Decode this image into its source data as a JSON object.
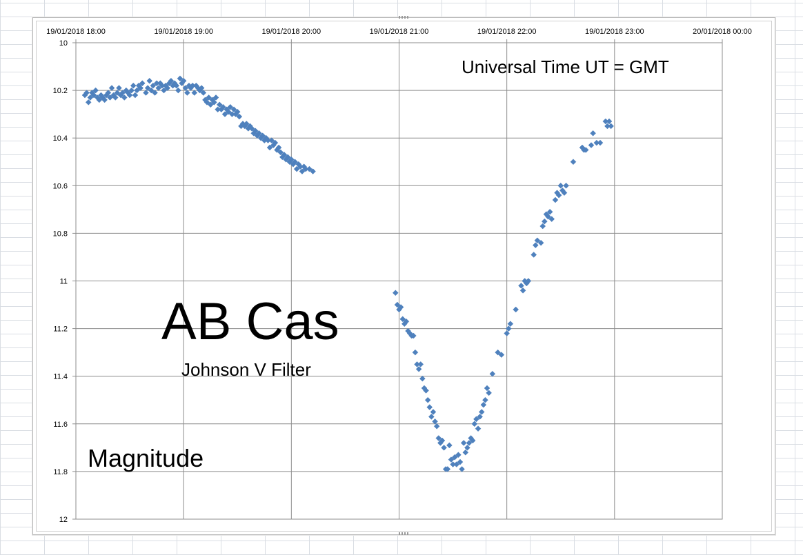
{
  "chart_data": {
    "type": "scatter",
    "title": "",
    "xlabel": "",
    "ylabel": "",
    "x_axis_position": "top",
    "y_axis_inverted": true,
    "xlim": [
      "19/01/2018 18:00",
      "20/01/2018 00:00"
    ],
    "ylim": [
      10,
      12
    ],
    "x_tick_labels": [
      "19/01/2018 18:00",
      "19/01/2018 19:00",
      "19/01/2018 20:00",
      "19/01/2018 21:00",
      "19/01/2018 22:00",
      "19/01/2018 23:00",
      "20/01/2018 00:00"
    ],
    "y_tick_labels": [
      "10",
      "10.2",
      "10.4",
      "10.6",
      "10.8",
      "11",
      "11.2",
      "11.4",
      "11.6",
      "11.8",
      "12"
    ],
    "grid": true,
    "marker": "diamond",
    "marker_color": "#4f81bd",
    "annotations": [
      {
        "id": "star-name",
        "text": "AB Cas"
      },
      {
        "id": "filter-name",
        "text": "Johnson V Filter"
      },
      {
        "id": "time-note",
        "text": "Universal Time  UT = GMT"
      },
      {
        "id": "magnitude-label",
        "text": "Magnitude"
      }
    ],
    "series": [
      {
        "points": [
          [
            "19/01/2018 18:05",
            10.22
          ],
          [
            "19/01/2018 18:06",
            10.21
          ],
          [
            "19/01/2018 18:07",
            10.25
          ],
          [
            "19/01/2018 18:08",
            10.23
          ],
          [
            "19/01/2018 18:09",
            10.21
          ],
          [
            "19/01/2018 18:10",
            10.22
          ],
          [
            "19/01/2018 18:11",
            10.2
          ],
          [
            "19/01/2018 18:12",
            10.23
          ],
          [
            "19/01/2018 18:13",
            10.24
          ],
          [
            "19/01/2018 18:14",
            10.22
          ],
          [
            "19/01/2018 18:15",
            10.23
          ],
          [
            "19/01/2018 18:16",
            10.24
          ],
          [
            "19/01/2018 18:17",
            10.22
          ],
          [
            "19/01/2018 18:18",
            10.21
          ],
          [
            "19/01/2018 18:19",
            10.23
          ],
          [
            "19/01/2018 18:20",
            10.19
          ],
          [
            "19/01/2018 18:21",
            10.22
          ],
          [
            "19/01/2018 18:22",
            10.23
          ],
          [
            "19/01/2018 18:23",
            10.21
          ],
          [
            "19/01/2018 18:24",
            10.19
          ],
          [
            "19/01/2018 18:25",
            10.22
          ],
          [
            "19/01/2018 18:26",
            10.21
          ],
          [
            "19/01/2018 18:27",
            10.23
          ],
          [
            "19/01/2018 18:28",
            10.2
          ],
          [
            "19/01/2018 18:29",
            10.21
          ],
          [
            "19/01/2018 18:30",
            10.22
          ],
          [
            "19/01/2018 18:31",
            10.2
          ],
          [
            "19/01/2018 18:32",
            10.18
          ],
          [
            "19/01/2018 18:33",
            10.22
          ],
          [
            "19/01/2018 18:34",
            10.2
          ],
          [
            "19/01/2018 18:35",
            10.18
          ],
          [
            "19/01/2018 18:36",
            10.19
          ],
          [
            "19/01/2018 18:37",
            10.17
          ],
          [
            "19/01/2018 18:39",
            10.21
          ],
          [
            "19/01/2018 18:40",
            10.19
          ],
          [
            "19/01/2018 18:41",
            10.16
          ],
          [
            "19/01/2018 18:42",
            10.2
          ],
          [
            "19/01/2018 18:43",
            10.18
          ],
          [
            "19/01/2018 18:44",
            10.21
          ],
          [
            "19/01/2018 18:45",
            10.17
          ],
          [
            "19/01/2018 18:46",
            10.19
          ],
          [
            "19/01/2018 18:47",
            10.17
          ],
          [
            "19/01/2018 18:48",
            10.18
          ],
          [
            "19/01/2018 18:49",
            10.2
          ],
          [
            "19/01/2018 18:50",
            10.18
          ],
          [
            "19/01/2018 18:51",
            10.19
          ],
          [
            "19/01/2018 18:52",
            10.17
          ],
          [
            "19/01/2018 18:53",
            10.16
          ],
          [
            "19/01/2018 18:54",
            10.18
          ],
          [
            "19/01/2018 18:55",
            10.17
          ],
          [
            "19/01/2018 18:56",
            10.18
          ],
          [
            "19/01/2018 18:57",
            10.2
          ],
          [
            "19/01/2018 18:58",
            10.15
          ],
          [
            "19/01/2018 18:59",
            10.17
          ],
          [
            "19/01/2018 19:00",
            10.16
          ],
          [
            "19/01/2018 19:01",
            10.19
          ],
          [
            "19/01/2018 19:02",
            10.21
          ],
          [
            "19/01/2018 19:03",
            10.18
          ],
          [
            "19/01/2018 19:04",
            10.19
          ],
          [
            "19/01/2018 19:05",
            10.18
          ],
          [
            "19/01/2018 19:06",
            10.21
          ],
          [
            "19/01/2018 19:07",
            10.18
          ],
          [
            "19/01/2018 19:08",
            10.19
          ],
          [
            "19/01/2018 19:09",
            10.2
          ],
          [
            "19/01/2018 19:10",
            10.19
          ],
          [
            "19/01/2018 19:11",
            10.21
          ],
          [
            "19/01/2018 19:12",
            10.24
          ],
          [
            "19/01/2018 19:13",
            10.25
          ],
          [
            "19/01/2018 19:14",
            10.23
          ],
          [
            "19/01/2018 19:15",
            10.26
          ],
          [
            "19/01/2018 19:16",
            10.24
          ],
          [
            "19/01/2018 19:17",
            10.25
          ],
          [
            "19/01/2018 19:18",
            10.23
          ],
          [
            "19/01/2018 19:19",
            10.28
          ],
          [
            "19/01/2018 19:20",
            10.26
          ],
          [
            "19/01/2018 19:21",
            10.28
          ],
          [
            "19/01/2018 19:22",
            10.27
          ],
          [
            "19/01/2018 19:23",
            10.3
          ],
          [
            "19/01/2018 19:24",
            10.28
          ],
          [
            "19/01/2018 19:25",
            10.29
          ],
          [
            "19/01/2018 19:26",
            10.27
          ],
          [
            "19/01/2018 19:27",
            10.3
          ],
          [
            "19/01/2018 19:28",
            10.28
          ],
          [
            "19/01/2018 19:29",
            10.3
          ],
          [
            "19/01/2018 19:30",
            10.29
          ],
          [
            "19/01/2018 19:31",
            10.31
          ],
          [
            "19/01/2018 19:32",
            10.35
          ],
          [
            "19/01/2018 19:33",
            10.34
          ],
          [
            "19/01/2018 19:34",
            10.35
          ],
          [
            "19/01/2018 19:35",
            10.34
          ],
          [
            "19/01/2018 19:36",
            10.36
          ],
          [
            "19/01/2018 19:37",
            10.35
          ],
          [
            "19/01/2018 19:38",
            10.36
          ],
          [
            "19/01/2018 19:39",
            10.38
          ],
          [
            "19/01/2018 19:40",
            10.37
          ],
          [
            "19/01/2018 19:41",
            10.39
          ],
          [
            "19/01/2018 19:42",
            10.38
          ],
          [
            "19/01/2018 19:43",
            10.4
          ],
          [
            "19/01/2018 19:44",
            10.39
          ],
          [
            "19/01/2018 19:45",
            10.41
          ],
          [
            "19/01/2018 19:46",
            10.4
          ],
          [
            "19/01/2018 19:47",
            10.41
          ],
          [
            "19/01/2018 19:48",
            10.44
          ],
          [
            "19/01/2018 19:49",
            10.41
          ],
          [
            "19/01/2018 19:50",
            10.43
          ],
          [
            "19/01/2018 19:51",
            10.42
          ],
          [
            "19/01/2018 19:52",
            10.45
          ],
          [
            "19/01/2018 19:53",
            10.44
          ],
          [
            "19/01/2018 19:54",
            10.46
          ],
          [
            "19/01/2018 19:55",
            10.48
          ],
          [
            "19/01/2018 19:56",
            10.47
          ],
          [
            "19/01/2018 19:57",
            10.49
          ],
          [
            "19/01/2018 19:58",
            10.48
          ],
          [
            "19/01/2018 19:59",
            10.5
          ],
          [
            "19/01/2018 20:00",
            10.49
          ],
          [
            "19/01/2018 20:01",
            10.51
          ],
          [
            "19/01/2018 20:02",
            10.5
          ],
          [
            "19/01/2018 20:03",
            10.53
          ],
          [
            "19/01/2018 20:04",
            10.51
          ],
          [
            "19/01/2018 20:05",
            10.52
          ],
          [
            "19/01/2018 20:06",
            10.54
          ],
          [
            "19/01/2018 20:07",
            10.52
          ],
          [
            "19/01/2018 20:08",
            10.53
          ],
          [
            "19/01/2018 20:10",
            10.53
          ],
          [
            "19/01/2018 20:12",
            10.54
          ],
          [
            "19/01/2018 20:58",
            11.05
          ],
          [
            "19/01/2018 20:59",
            11.1
          ],
          [
            "19/01/2018 21:00",
            11.12
          ],
          [
            "19/01/2018 21:01",
            11.11
          ],
          [
            "19/01/2018 21:02",
            11.16
          ],
          [
            "19/01/2018 21:03",
            11.18
          ],
          [
            "19/01/2018 21:04",
            11.17
          ],
          [
            "19/01/2018 21:05",
            11.21
          ],
          [
            "19/01/2018 21:06",
            11.22
          ],
          [
            "19/01/2018 21:07",
            11.23
          ],
          [
            "19/01/2018 21:08",
            11.23
          ],
          [
            "19/01/2018 21:09",
            11.3
          ],
          [
            "19/01/2018 21:10",
            11.35
          ],
          [
            "19/01/2018 21:11",
            11.37
          ],
          [
            "19/01/2018 21:12",
            11.35
          ],
          [
            "19/01/2018 21:13",
            11.41
          ],
          [
            "19/01/2018 21:14",
            11.45
          ],
          [
            "19/01/2018 21:15",
            11.46
          ],
          [
            "19/01/2018 21:16",
            11.5
          ],
          [
            "19/01/2018 21:17",
            11.53
          ],
          [
            "19/01/2018 21:18",
            11.57
          ],
          [
            "19/01/2018 21:19",
            11.55
          ],
          [
            "19/01/2018 21:20",
            11.59
          ],
          [
            "19/01/2018 21:21",
            11.61
          ],
          [
            "19/01/2018 21:22",
            11.66
          ],
          [
            "19/01/2018 21:23",
            11.68
          ],
          [
            "19/01/2018 21:24",
            11.67
          ],
          [
            "19/01/2018 21:25",
            11.7
          ],
          [
            "19/01/2018 21:26",
            11.79
          ],
          [
            "19/01/2018 21:27",
            11.79
          ],
          [
            "19/01/2018 21:28",
            11.69
          ],
          [
            "19/01/2018 21:29",
            11.75
          ],
          [
            "19/01/2018 21:30",
            11.77
          ],
          [
            "19/01/2018 21:31",
            11.74
          ],
          [
            "19/01/2018 21:32",
            11.77
          ],
          [
            "19/01/2018 21:33",
            11.73
          ],
          [
            "19/01/2018 21:34",
            11.76
          ],
          [
            "19/01/2018 21:35",
            11.79
          ],
          [
            "19/01/2018 21:36",
            11.68
          ],
          [
            "19/01/2018 21:37",
            11.72
          ],
          [
            "19/01/2018 21:38",
            11.7
          ],
          [
            "19/01/2018 21:39",
            11.68
          ],
          [
            "19/01/2018 21:40",
            11.66
          ],
          [
            "19/01/2018 21:41",
            11.67
          ],
          [
            "19/01/2018 21:42",
            11.6
          ],
          [
            "19/01/2018 21:43",
            11.58
          ],
          [
            "19/01/2018 21:44",
            11.62
          ],
          [
            "19/01/2018 21:45",
            11.57
          ],
          [
            "19/01/2018 21:46",
            11.55
          ],
          [
            "19/01/2018 21:47",
            11.52
          ],
          [
            "19/01/2018 21:48",
            11.5
          ],
          [
            "19/01/2018 21:49",
            11.45
          ],
          [
            "19/01/2018 21:50",
            11.47
          ],
          [
            "19/01/2018 21:52",
            11.39
          ],
          [
            "19/01/2018 21:55",
            11.3
          ],
          [
            "19/01/2018 21:57",
            11.31
          ],
          [
            "19/01/2018 22:00",
            11.22
          ],
          [
            "19/01/2018 22:01",
            11.2
          ],
          [
            "19/01/2018 22:02",
            11.18
          ],
          [
            "19/01/2018 22:05",
            11.12
          ],
          [
            "19/01/2018 22:08",
            11.02
          ],
          [
            "19/01/2018 22:09",
            11.04
          ],
          [
            "19/01/2018 22:10",
            11.0
          ],
          [
            "19/01/2018 22:11",
            11.01
          ],
          [
            "19/01/2018 22:12",
            11.0
          ],
          [
            "19/01/2018 22:15",
            10.89
          ],
          [
            "19/01/2018 22:16",
            10.85
          ],
          [
            "19/01/2018 22:17",
            10.83
          ],
          [
            "19/01/2018 22:19",
            10.84
          ],
          [
            "19/01/2018 22:20",
            10.77
          ],
          [
            "19/01/2018 22:21",
            10.75
          ],
          [
            "19/01/2018 22:22",
            10.72
          ],
          [
            "19/01/2018 22:23",
            10.73
          ],
          [
            "19/01/2018 22:24",
            10.71
          ],
          [
            "19/01/2018 22:25",
            10.74
          ],
          [
            "19/01/2018 22:27",
            10.66
          ],
          [
            "19/01/2018 22:28",
            10.63
          ],
          [
            "19/01/2018 22:29",
            10.64
          ],
          [
            "19/01/2018 22:30",
            10.6
          ],
          [
            "19/01/2018 22:31",
            10.62
          ],
          [
            "19/01/2018 22:32",
            10.63
          ],
          [
            "19/01/2018 22:33",
            10.6
          ],
          [
            "19/01/2018 22:37",
            10.5
          ],
          [
            "19/01/2018 22:42",
            10.44
          ],
          [
            "19/01/2018 22:43",
            10.45
          ],
          [
            "19/01/2018 22:44",
            10.45
          ],
          [
            "19/01/2018 22:47",
            10.43
          ],
          [
            "19/01/2018 22:48",
            10.38
          ],
          [
            "19/01/2018 22:50",
            10.42
          ],
          [
            "19/01/2018 22:52",
            10.42
          ],
          [
            "19/01/2018 22:55",
            10.33
          ],
          [
            "19/01/2018 22:56",
            10.35
          ],
          [
            "19/01/2018 22:57",
            10.33
          ],
          [
            "19/01/2018 22:58",
            10.35
          ]
        ]
      }
    ]
  }
}
